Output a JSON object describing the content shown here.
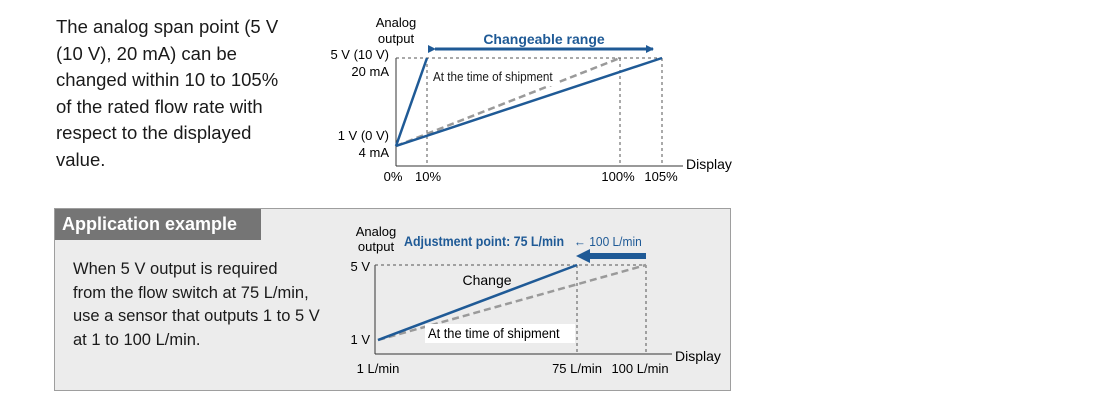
{
  "intro": {
    "lines": [
      "The analog span point (5 V",
      "(10 V), 20 mA) can be",
      "changed within 10 to 105%",
      "of the rated flow rate with",
      "respect to the displayed",
      "value."
    ]
  },
  "top_diagram": {
    "y_axis_label": [
      "Analog",
      "output"
    ],
    "y_high_label": [
      "5 V (10 V)",
      "20 mA"
    ],
    "y_low_label": [
      "1 V (0 V)",
      "4 mA"
    ],
    "x_labels": [
      "0%",
      "10%",
      "100%",
      "105%"
    ],
    "x_axis_label": "Display",
    "range_label": "Changeable range",
    "shipment_label": "At the time of shipment"
  },
  "example": {
    "title": "Application example",
    "lines": [
      "When 5 V output is required",
      "from the flow switch at 75 L/min,",
      "use a sensor that outputs 1 to 5 V",
      "at 1 to 100 L/min."
    ],
    "y_axis_label": [
      "Analog",
      "output"
    ],
    "y_high_label": "5 V",
    "y_low_label": "1 V",
    "x_labels": [
      "1 L/min",
      "75 L/min",
      "100 L/min"
    ],
    "x_axis_label": "Display",
    "adjustment_label": "Adjustment point: 75 L/min",
    "adjustment_from": "← 100 L/min",
    "change_label": "Change",
    "shipment_label": "At the time of shipment"
  },
  "colors": {
    "accent_blue": "#1f5a96",
    "dashed_gray": "#9a9a9a",
    "box_background": "#ececec",
    "title_bar": "#757575"
  }
}
